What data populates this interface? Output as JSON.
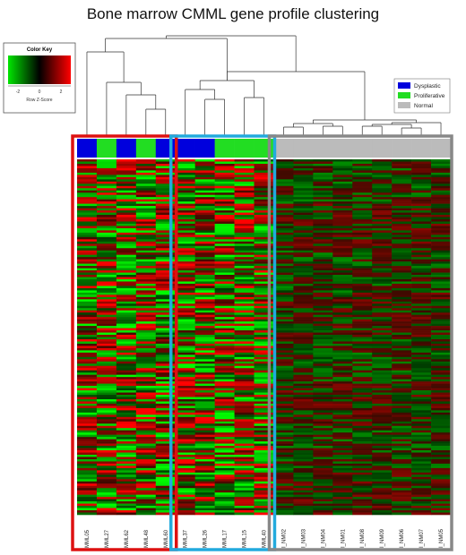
{
  "title": "Bone marrow CMML gene profile clustering",
  "color_key": {
    "title": "Color Key",
    "ticks": [
      "-2",
      "0",
      "2"
    ],
    "xlabel": "Row Z-Score",
    "low_color": "#00e600",
    "mid_color": "#000000",
    "high_color": "#ff0000"
  },
  "legend": {
    "placement": "top-right",
    "items": [
      {
        "label": "Dysplastic",
        "color": "#0000dd"
      },
      {
        "label": "Proliferative",
        "color": "#22dd22"
      },
      {
        "label": "Normal",
        "color": "#bbbbbb"
      }
    ]
  },
  "chart_data": {
    "type": "heatmap",
    "title": "Bone marrow CMML gene profile clustering",
    "columns": [
      "MML05",
      "MML27",
      "MML62",
      "MML48",
      "MML60",
      "MML37",
      "MML26",
      "MML17",
      "MML15",
      "MML40",
      "I_NM02",
      "I_NM03",
      "I_NM04",
      "I_NM01",
      "I_NM08",
      "I_NM09",
      "I_NM06",
      "I_NM07",
      "I_NM05"
    ],
    "column_groups": [
      "Dysplastic",
      "Proliferative",
      "Dysplastic",
      "Proliferative",
      "Dysplastic",
      "Dysplastic",
      "Dysplastic",
      "Proliferative",
      "Proliferative",
      "Proliferative",
      "Normal",
      "Normal",
      "Normal",
      "Normal",
      "Normal",
      "Normal",
      "Normal",
      "Normal",
      "Normal"
    ],
    "clusters": [
      {
        "box_color": "#dd1111",
        "columns": [
          "MML05",
          "MML27",
          "MML62",
          "MML48",
          "MML60"
        ]
      },
      {
        "box_color": "#22aadd",
        "columns": [
          "MML37",
          "MML26",
          "MML17",
          "MML15",
          "MML40"
        ]
      },
      {
        "box_color": "#888888",
        "columns": [
          "I_NM02",
          "I_NM03",
          "I_NM04",
          "I_NM01",
          "I_NM08",
          "I_NM09",
          "I_NM06",
          "I_NM07",
          "I_NM05"
        ]
      }
    ],
    "color_scale": {
      "min": -2,
      "max": 2,
      "label": "Row Z-Score"
    }
  }
}
